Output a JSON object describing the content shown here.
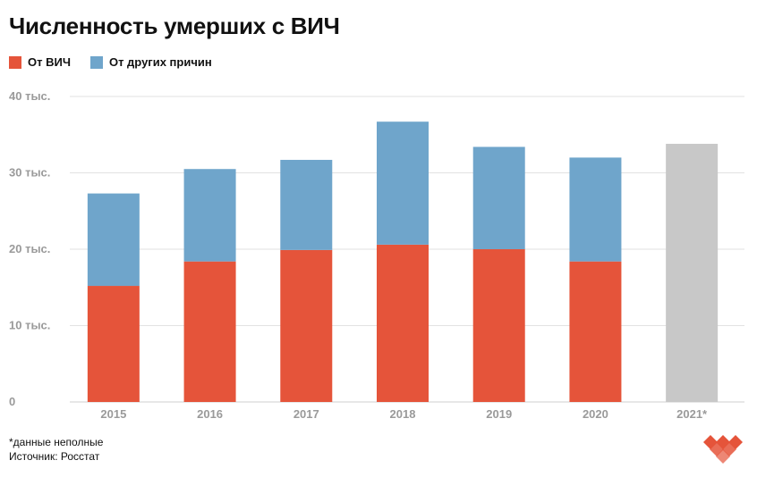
{
  "title": "Численность умерших с ВИЧ",
  "legend": [
    {
      "label": "От ВИЧ",
      "color": "#E5543A"
    },
    {
      "label": "От других причин",
      "color": "#6FA5CB"
    }
  ],
  "footnote": {
    "note": "*данные неполные",
    "source": "Источник: Росстат"
  },
  "logo": {
    "icon": "heart-logo-icon"
  },
  "chart_data": {
    "type": "bar",
    "stacked": true,
    "categories": [
      "2015",
      "2016",
      "2017",
      "2018",
      "2019",
      "2020",
      "2021*"
    ],
    "series": [
      {
        "name": "От ВИЧ",
        "color": "#E5543A",
        "values": [
          15.2,
          18.4,
          19.9,
          20.6,
          20.0,
          18.4,
          null
        ]
      },
      {
        "name": "От других причин",
        "color": "#6FA5CB",
        "values": [
          12.1,
          12.1,
          11.8,
          16.1,
          13.4,
          13.6,
          null
        ]
      }
    ],
    "total_only": [
      null,
      null,
      null,
      null,
      null,
      null,
      33.8
    ],
    "total_only_color": "#C8C8C8",
    "yticks": [
      0,
      10,
      20,
      30,
      40
    ],
    "ytick_labels": [
      "0",
      "10 тыс.",
      "20 тыс.",
      "30 тыс.",
      "40 тыс."
    ],
    "ylim": [
      0,
      40
    ],
    "grid": true
  }
}
